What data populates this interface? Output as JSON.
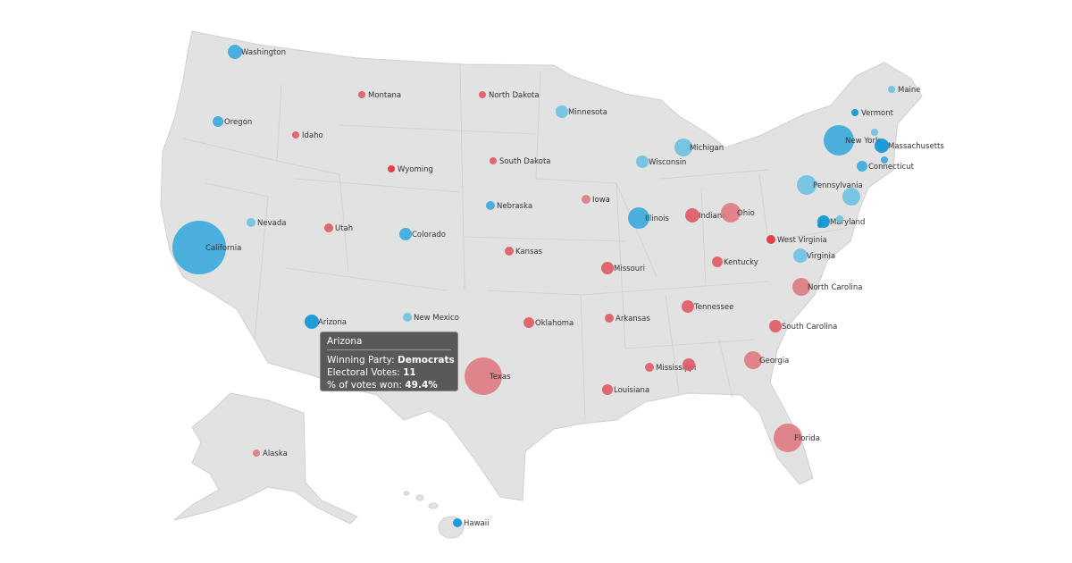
{
  "colors": {
    "dem_strong": "#0a94d6",
    "dem": "#3aaadb",
    "dem_light": "#6ec0e3",
    "rep_strong": "#e0313a",
    "rep": "#e05a63",
    "rep_light": "#e07a82",
    "land": "#e2e2e2"
  },
  "states": [
    {
      "name": "Washington",
      "party": "dem"
    },
    {
      "name": "Oregon",
      "party": "dem"
    },
    {
      "name": "California",
      "party": "dem"
    },
    {
      "name": "Nevada",
      "party": "dem_light"
    },
    {
      "name": "Idaho",
      "party": "rep"
    },
    {
      "name": "Montana",
      "party": "rep"
    },
    {
      "name": "Wyoming",
      "party": "rep_strong"
    },
    {
      "name": "Utah",
      "party": "rep"
    },
    {
      "name": "Arizona",
      "party": "dem_strong"
    },
    {
      "name": "Colorado",
      "party": "dem"
    },
    {
      "name": "New Mexico",
      "party": "dem_light"
    },
    {
      "name": "North Dakota",
      "party": "rep"
    },
    {
      "name": "South Dakota",
      "party": "rep"
    },
    {
      "name": "Nebraska",
      "party": "dem"
    },
    {
      "name": "Kansas",
      "party": "rep"
    },
    {
      "name": "Oklahoma",
      "party": "rep"
    },
    {
      "name": "Texas",
      "party": "rep_light"
    },
    {
      "name": "Minnesota",
      "party": "dem_light"
    },
    {
      "name": "Iowa",
      "party": "rep_light"
    },
    {
      "name": "Missouri",
      "party": "rep"
    },
    {
      "name": "Arkansas",
      "party": "rep"
    },
    {
      "name": "Louisiana",
      "party": "rep"
    },
    {
      "name": "Wisconsin",
      "party": "dem_light"
    },
    {
      "name": "Illinois",
      "party": "dem"
    },
    {
      "name": "Michigan",
      "party": "dem_light"
    },
    {
      "name": "Indiana",
      "party": "rep"
    },
    {
      "name": "Kentucky",
      "party": "rep"
    },
    {
      "name": "Tennessee",
      "party": "rep"
    },
    {
      "name": "Mississippi",
      "party": "rep"
    },
    {
      "name": "",
      "party": "rep"
    },
    {
      "name": "Ohio",
      "party": "rep_light"
    },
    {
      "name": "West Virginia",
      "party": "rep_strong"
    },
    {
      "name": "Virginia",
      "party": "dem_light"
    },
    {
      "name": "North Carolina",
      "party": "rep_light"
    },
    {
      "name": "South Carolina",
      "party": "rep"
    },
    {
      "name": "Georgia",
      "party": "rep_light"
    },
    {
      "name": "Florida",
      "party": "rep_light"
    },
    {
      "name": "Pennsylvania",
      "party": "dem_light"
    },
    {
      "name": "New York",
      "party": "dem"
    },
    {
      "name": "Vermont",
      "party": "dem_strong"
    },
    {
      "name": "Maine",
      "party": "dem_light"
    },
    {
      "name": "",
      "party": "dem_light"
    },
    {
      "name": "Massachusetts",
      "party": "dem_strong"
    },
    {
      "name": "",
      "party": "dem"
    },
    {
      "name": "Connecticut",
      "party": "dem"
    },
    {
      "name": "",
      "party": "dem_light"
    },
    {
      "name": "Maryland",
      "party": "dem_strong"
    },
    {
      "name": "",
      "party": "dem_light"
    },
    {
      "name": "",
      "party": "dem_strong"
    },
    {
      "name": "Alaska",
      "party": "rep_light"
    },
    {
      "name": "Hawaii",
      "party": "dem_strong"
    }
  ],
  "tooltip": {
    "title": "Arizona",
    "party_label": "Winning Party:",
    "party_value": "Democrats",
    "votes_label": "Electoral Votes:",
    "votes_value": "11",
    "pct_label": "% of votes won:",
    "pct_value": "49.4%"
  }
}
